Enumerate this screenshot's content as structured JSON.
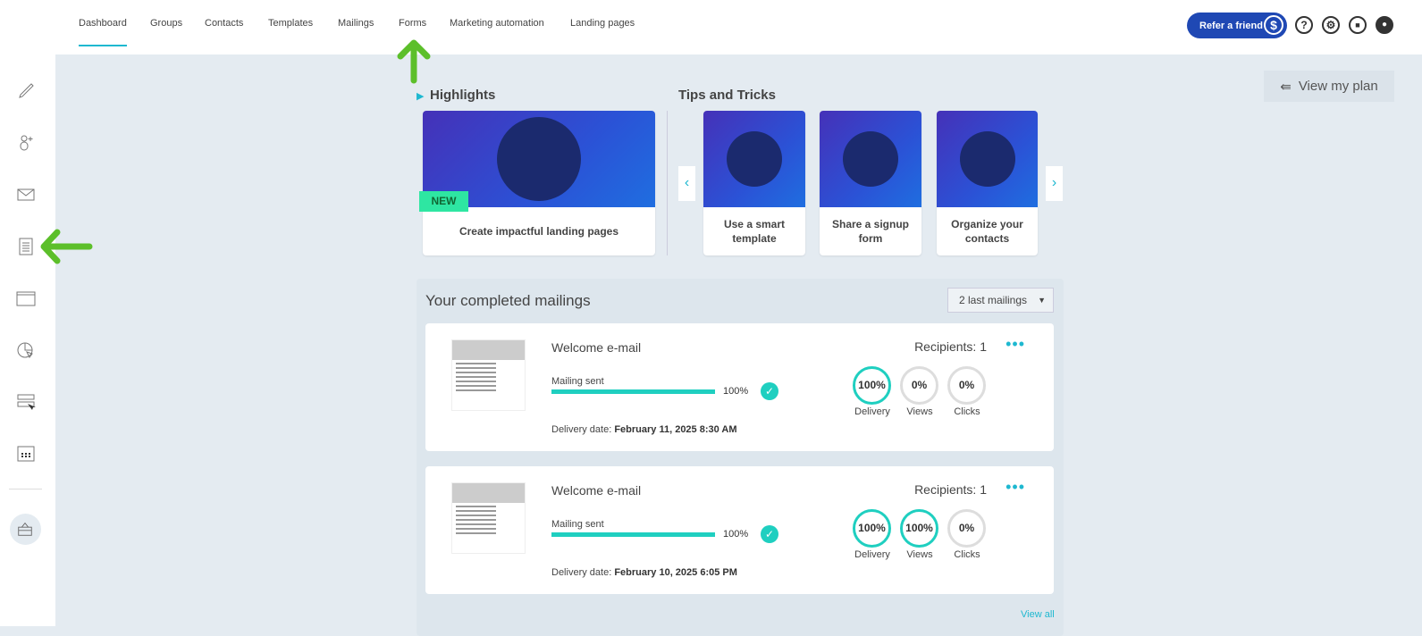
{
  "nav": {
    "items": [
      "Dashboard",
      "Groups",
      "Contacts",
      "Templates",
      "Mailings",
      "Forms",
      "Marketing automation",
      "Landing pages"
    ],
    "active": "Dashboard",
    "refer": "Refer a friend",
    "icons": [
      "help-icon",
      "settings-icon",
      "folder-icon",
      "user-icon"
    ]
  },
  "sidebar": {
    "icons": [
      "brush-icon",
      "add-contact-icon",
      "envelope-icon",
      "form-icon",
      "landing-page-icon",
      "reports-icon",
      "popup-icon",
      "calendar-icon",
      "store-icon"
    ]
  },
  "plan": {
    "label": "View my plan"
  },
  "highlights": {
    "title": "Highlights",
    "badge": "NEW",
    "card": "Create impactful landing pages"
  },
  "tips": {
    "title": "Tips and Tricks",
    "cards": [
      "Use a smart template",
      "Share a signup form",
      "Organize your contacts"
    ]
  },
  "mailings": {
    "title": "Your completed mailings",
    "filter": "2 last mailings",
    "view_all": "View all",
    "items": [
      {
        "name": "Welcome e-mail",
        "status": "Mailing sent",
        "progress": "100%",
        "date_label": "Delivery date:",
        "date": "February 11, 2025 8:30 AM",
        "recipients": "Recipients: 1",
        "delivery": "100%",
        "views": "0%",
        "clicks": "0%"
      },
      {
        "name": "Welcome e-mail",
        "status": "Mailing sent",
        "progress": "100%",
        "date_label": "Delivery date:",
        "date": "February 10, 2025 6:05 PM",
        "recipients": "Recipients: 1",
        "delivery": "100%",
        "views": "100%",
        "clicks": "0%"
      }
    ],
    "stat_labels": [
      "Delivery",
      "Views",
      "Clicks"
    ]
  },
  "colors": {
    "accent": "#1eb8d0",
    "teal": "#1fcfc0",
    "brand": "#1f48b4",
    "annotation": "#5cbf2a"
  }
}
